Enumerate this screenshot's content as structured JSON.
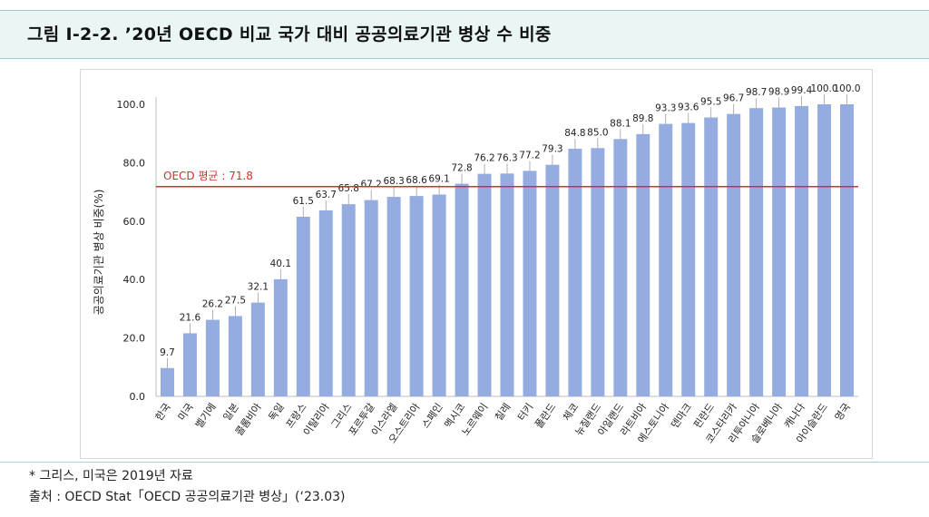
{
  "figure": {
    "title": "그림 Ⅰ-2-2. ’20년 OECD 비교 국가 대비 공공의료기관 병상 수 비중"
  },
  "notes": {
    "footnote": "* 그리스, 미국은 2019년 자료",
    "source": "출처 : OECD Stat「OECD 공공의료기관 병상」(‘23.03)"
  },
  "chart_data": {
    "type": "bar",
    "title": "",
    "xlabel": "",
    "ylabel": "공공의료기관 병상 비중(%)",
    "ylim": [
      0,
      100
    ],
    "yticks": [
      "0.0",
      "20.0",
      "40.0",
      "60.0",
      "80.0",
      "100.0"
    ],
    "grid": false,
    "bar_color": "#94ace0",
    "categories": [
      "한국",
      "미국",
      "벨기에",
      "일본",
      "콜롬비아",
      "독일",
      "프랑스",
      "이탈리아",
      "그리스",
      "포르투갈",
      "이스라엘",
      "오스트리아",
      "스페인",
      "멕시코",
      "노르웨이",
      "칠레",
      "터키",
      "폴란드",
      "체코",
      "뉴질랜드",
      "아일랜드",
      "라트비아",
      "에스토니아",
      "덴마크",
      "핀란드",
      "코스타리카",
      "리투아니아",
      "슬로베니아",
      "캐나다",
      "아이슬란드",
      "영국"
    ],
    "values": [
      9.7,
      21.6,
      26.2,
      27.5,
      32.1,
      40.1,
      61.5,
      63.7,
      65.8,
      67.2,
      68.3,
      68.6,
      69.1,
      72.8,
      76.2,
      76.3,
      77.2,
      79.3,
      84.8,
      85.0,
      88.1,
      89.8,
      93.3,
      93.6,
      95.5,
      96.7,
      98.7,
      98.9,
      99.4,
      100.0,
      100.0
    ],
    "value_labels": [
      "9.7",
      "21.6",
      "26.2",
      "27.5",
      "32.1",
      "40.1",
      "61.5",
      "63.7",
      "65.8",
      "67.2",
      "68.3",
      "68.6",
      "69.1",
      "72.8",
      "76.2",
      "76.3",
      "77.2",
      "79.3",
      "84.8",
      "85.0",
      "88.1",
      "89.8",
      "93.3",
      "93.6",
      "95.5",
      "96.7",
      "98.7",
      "98.9",
      "99.4",
      "100.0",
      "100.0"
    ],
    "reference_line": {
      "label": "OECD 평균 : 71.8",
      "value": 71.8,
      "color": "#d32f2f"
    }
  }
}
